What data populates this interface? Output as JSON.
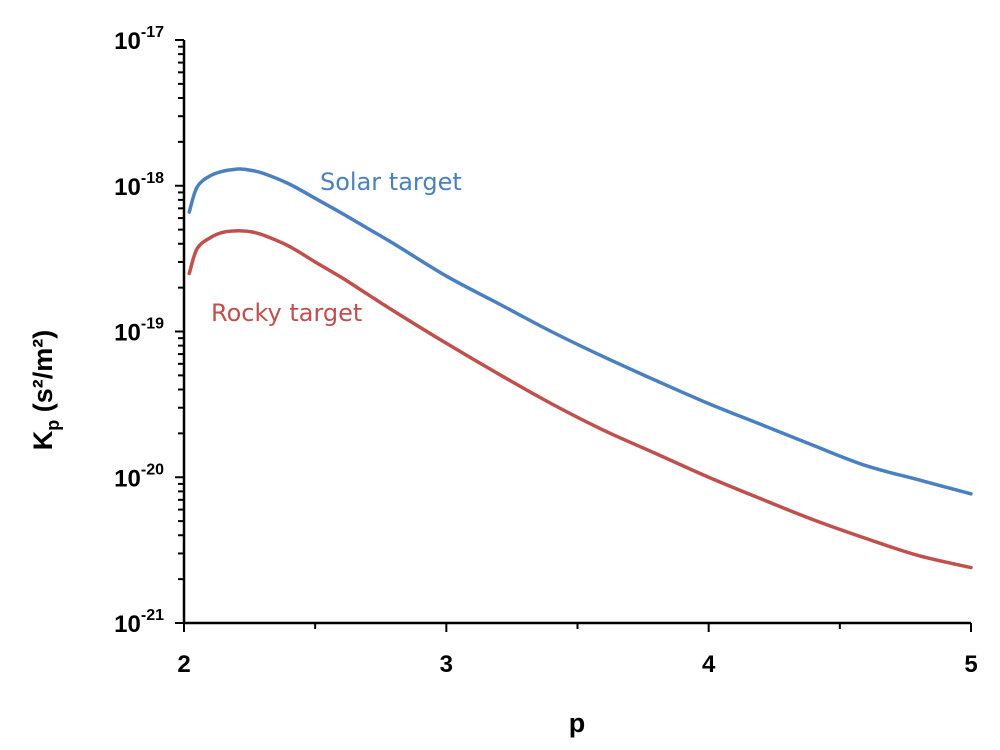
{
  "chart_data": {
    "type": "line",
    "xlabel": "p",
    "ylabel": {
      "base": "K",
      "sub": "p",
      "units": " (s²/m²)"
    },
    "xlim": [
      2,
      5
    ],
    "ylim": [
      1e-21,
      1e-17
    ],
    "yscale": "log",
    "grid": false,
    "x_ticks": [
      2,
      3,
      4,
      5
    ],
    "x_tick_labels": [
      "2",
      "3",
      "4",
      "5"
    ],
    "y_ticks": [
      {
        "value": 1e-17,
        "base": "10",
        "exp": "-17"
      },
      {
        "value": 1e-18,
        "base": "10",
        "exp": "-18"
      },
      {
        "value": 1e-19,
        "base": "10",
        "exp": "-19"
      },
      {
        "value": 1e-20,
        "base": "10",
        "exp": "-20"
      },
      {
        "value": 1e-21,
        "base": "10",
        "exp": "-21"
      }
    ],
    "series": [
      {
        "name": "Solar target",
        "color": "#4a80c0",
        "x": [
          2.02,
          2.05,
          2.1,
          2.15,
          2.2,
          2.22,
          2.25,
          2.3,
          2.4,
          2.5,
          2.6,
          2.7,
          2.8,
          3.0,
          3.2,
          3.4,
          3.6,
          3.8,
          4.0,
          4.2,
          4.4,
          4.6,
          4.8,
          5.0
        ],
        "y": [
          6.6e-19,
          9.8e-19,
          1.17e-18,
          1.26e-18,
          1.3e-18,
          1.3e-18,
          1.28e-18,
          1.22e-18,
          1.03e-18,
          8.2e-19,
          6.5e-19,
          5.1e-19,
          4e-19,
          2.4e-19,
          1.55e-19,
          1e-19,
          6.7e-20,
          4.6e-20,
          3.2e-20,
          2.3e-20,
          1.65e-20,
          1.2e-20,
          9.6e-21,
          7.7e-21
        ]
      },
      {
        "name": "Rocky target",
        "color": "#c0504d",
        "x": [
          2.02,
          2.05,
          2.1,
          2.15,
          2.2,
          2.22,
          2.25,
          2.3,
          2.4,
          2.5,
          2.6,
          2.7,
          2.8,
          3.0,
          3.2,
          3.4,
          3.6,
          3.8,
          4.0,
          4.2,
          4.4,
          4.6,
          4.8,
          5.0
        ],
        "y": [
          2.5e-19,
          3.7e-19,
          4.4e-19,
          4.8e-19,
          4.9e-19,
          4.9e-19,
          4.85e-19,
          4.6e-19,
          3.85e-19,
          3e-19,
          2.35e-19,
          1.8e-19,
          1.38e-19,
          8.3e-20,
          5.1e-20,
          3.2e-20,
          2.1e-20,
          1.45e-20,
          1e-20,
          7.1e-21,
          5.1e-21,
          3.8e-21,
          2.9e-21,
          2.4e-21
        ]
      }
    ]
  }
}
